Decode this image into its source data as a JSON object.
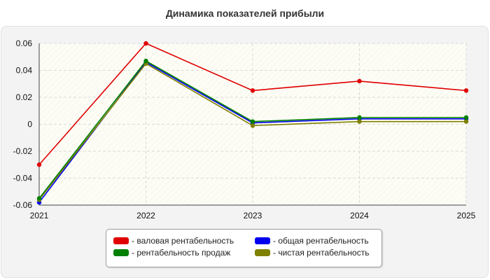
{
  "chart_data": {
    "type": "line",
    "title": "Динамика показателей прибыли",
    "categories": [
      "2021",
      "2022",
      "2023",
      "2024",
      "2025"
    ],
    "ylim": [
      -0.06,
      0.06
    ],
    "yticks": [
      0.06,
      0.04,
      0.02,
      0,
      -0.02,
      -0.04,
      -0.06
    ],
    "ytick_labels": [
      "0.06",
      "0.04",
      "0.02",
      "0",
      "-0.02",
      "-0.04",
      "-0.06"
    ],
    "grid": true,
    "legend_position": "bottom",
    "series": [
      {
        "name": "- валовая рентабельность",
        "color": "#e00000",
        "values": [
          -0.03,
          0.06,
          0.025,
          0.032,
          0.025
        ]
      },
      {
        "name": "- общая рентабельность",
        "color": "#0000ee",
        "values": [
          -0.058,
          0.046,
          0.001,
          0.004,
          0.004
        ]
      },
      {
        "name": "- рентабельность продаж",
        "color": "#008000",
        "values": [
          -0.055,
          0.047,
          0.002,
          0.005,
          0.005
        ]
      },
      {
        "name": "- чистая рентабельность",
        "color": "#808000",
        "values": [
          -0.056,
          0.045,
          -0.001,
          0.002,
          0.002
        ]
      }
    ]
  }
}
